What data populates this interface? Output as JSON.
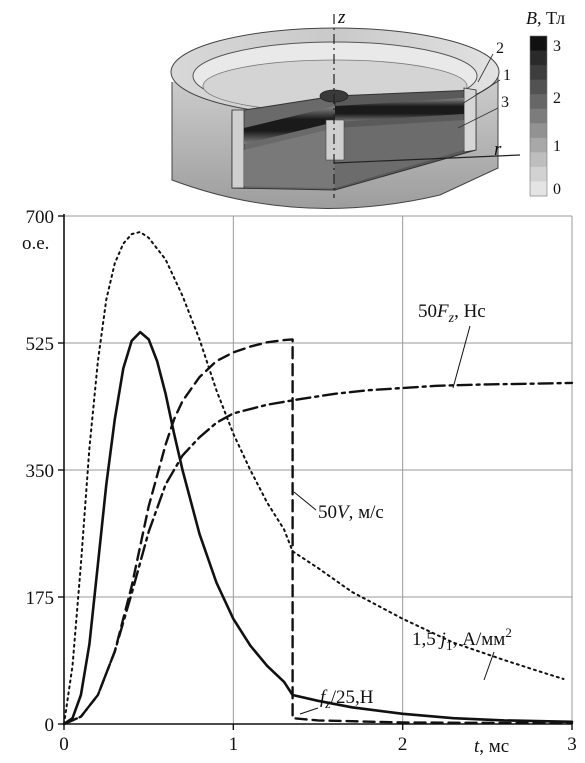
{
  "inset": {
    "axis_z": "z",
    "axis_r": "r",
    "part_labels": [
      "2",
      "1",
      "3"
    ],
    "colorbar": {
      "title_sym": "B",
      "title_unit": ", Тл",
      "ticks": [
        "3",
        "2",
        "1",
        "0"
      ],
      "shades": [
        "#111111",
        "#2a2a2a",
        "#3d3d3d",
        "#525252",
        "#676767",
        "#7c7c7c",
        "#929292",
        "#a8a8a8",
        "#bebebe",
        "#d2d2d2",
        "#e4e4e4"
      ]
    }
  },
  "chart_data": {
    "type": "line",
    "xlim": [
      0,
      3
    ],
    "ylim": [
      0,
      700
    ],
    "ylabel": "о.е.",
    "xlabel_sym": "t",
    "xlabel_unit": ", мс",
    "xticks": [
      "0",
      "1",
      "2",
      "3"
    ],
    "yticks": [
      "0",
      "175",
      "350",
      "525",
      "700"
    ],
    "grid": true,
    "series": [
      {
        "name": "fz/25,Н",
        "label_parts": [
          "f",
          "z",
          "/25,Н"
        ],
        "style": "solid",
        "points": [
          [
            0,
            0
          ],
          [
            0.05,
            8
          ],
          [
            0.1,
            40
          ],
          [
            0.15,
            110
          ],
          [
            0.2,
            220
          ],
          [
            0.25,
            330
          ],
          [
            0.3,
            420
          ],
          [
            0.35,
            490
          ],
          [
            0.4,
            528
          ],
          [
            0.45,
            540
          ],
          [
            0.5,
            530
          ],
          [
            0.55,
            500
          ],
          [
            0.6,
            455
          ],
          [
            0.65,
            400
          ],
          [
            0.7,
            350
          ],
          [
            0.8,
            262
          ],
          [
            0.9,
            195
          ],
          [
            1.0,
            145
          ],
          [
            1.1,
            108
          ],
          [
            1.2,
            80
          ],
          [
            1.3,
            58
          ],
          [
            1.35,
            40
          ],
          [
            1.5,
            32
          ],
          [
            1.7,
            23
          ],
          [
            2.0,
            14
          ],
          [
            2.3,
            8
          ],
          [
            2.6,
            5
          ],
          [
            3.0,
            3
          ]
        ]
      },
      {
        "name": "1,5 j1, А/мм2",
        "label_parts": [
          "1,5 ",
          "j",
          "1",
          ", А/мм",
          "2"
        ],
        "style": "dotted",
        "points": [
          [
            0,
            0
          ],
          [
            0.05,
            80
          ],
          [
            0.1,
            220
          ],
          [
            0.15,
            380
          ],
          [
            0.2,
            500
          ],
          [
            0.25,
            585
          ],
          [
            0.3,
            635
          ],
          [
            0.35,
            662
          ],
          [
            0.4,
            675
          ],
          [
            0.45,
            678
          ],
          [
            0.5,
            670
          ],
          [
            0.6,
            640
          ],
          [
            0.7,
            590
          ],
          [
            0.8,
            530
          ],
          [
            0.9,
            460
          ],
          [
            1.0,
            400
          ],
          [
            1.1,
            350
          ],
          [
            1.2,
            305
          ],
          [
            1.3,
            268
          ],
          [
            1.35,
            238
          ],
          [
            1.5,
            215
          ],
          [
            1.7,
            182
          ],
          [
            2.0,
            145
          ],
          [
            2.3,
            112
          ],
          [
            2.6,
            88
          ],
          [
            2.8,
            73
          ],
          [
            2.95,
            62
          ]
        ]
      },
      {
        "name": "50V, м/с",
        "label_parts": [
          "50",
          "V",
          ", м/с"
        ],
        "style": "dashed",
        "points": [
          [
            0,
            0
          ],
          [
            0.1,
            10
          ],
          [
            0.2,
            40
          ],
          [
            0.3,
            100
          ],
          [
            0.4,
            190
          ],
          [
            0.5,
            300
          ],
          [
            0.6,
            385
          ],
          [
            0.65,
            420
          ],
          [
            0.7,
            445
          ],
          [
            0.8,
            478
          ],
          [
            0.9,
            500
          ],
          [
            1.0,
            512
          ],
          [
            1.1,
            520
          ],
          [
            1.2,
            526
          ],
          [
            1.3,
            529
          ],
          [
            1.35,
            530
          ],
          [
            1.35,
            8
          ],
          [
            1.5,
            5
          ],
          [
            2.0,
            2
          ],
          [
            3.0,
            1
          ]
        ]
      },
      {
        "name": "50Fz, Нс",
        "label_parts": [
          "50",
          "F",
          "z",
          ", Нс"
        ],
        "style": "dashdot",
        "points": [
          [
            0,
            0
          ],
          [
            0.1,
            10
          ],
          [
            0.2,
            40
          ],
          [
            0.3,
            100
          ],
          [
            0.4,
            180
          ],
          [
            0.5,
            265
          ],
          [
            0.6,
            330
          ],
          [
            0.7,
            370
          ],
          [
            0.8,
            395
          ],
          [
            0.9,
            415
          ],
          [
            1.0,
            428
          ],
          [
            1.2,
            440
          ],
          [
            1.4,
            448
          ],
          [
            1.6,
            455
          ],
          [
            1.8,
            460
          ],
          [
            2.0,
            463
          ],
          [
            2.2,
            466
          ],
          [
            2.5,
            468
          ],
          [
            2.8,
            469
          ],
          [
            3.0,
            470
          ]
        ]
      }
    ]
  }
}
